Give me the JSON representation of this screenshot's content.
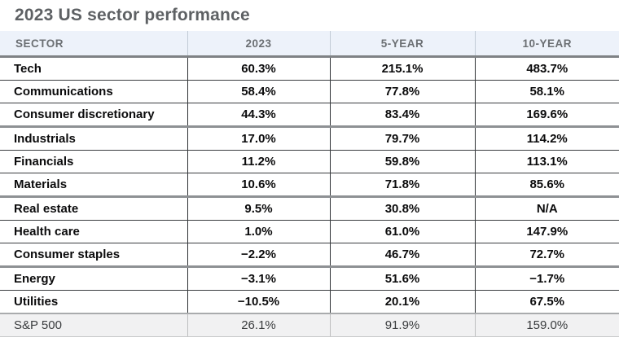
{
  "title": "2023 US sector performance",
  "colors": {
    "title_text": "#5e6164",
    "header_bg": "#edf2fa",
    "header_text": "#6b6f73",
    "header_bottom_border": "#7f8285",
    "row_border": "#3a3d40",
    "group_border": "#8e9194",
    "footer_bg": "#f1f1f2",
    "footer_border_top": "#a9abad"
  },
  "chart_data": {
    "type": "table",
    "title": "2023 US sector performance",
    "columns": [
      "SECTOR",
      "2023",
      "5-YEAR",
      "10-YEAR"
    ],
    "rows": [
      [
        "Tech",
        "60.3%",
        "215.1%",
        "483.7%"
      ],
      [
        "Communications",
        "58.4%",
        "77.8%",
        "58.1%"
      ],
      [
        "Consumer discretionary",
        "44.3%",
        "83.4%",
        "169.6%"
      ],
      [
        "Industrials",
        "17.0%",
        "79.7%",
        "114.2%"
      ],
      [
        "Financials",
        "11.2%",
        "59.8%",
        "113.1%"
      ],
      [
        "Materials",
        "10.6%",
        "71.8%",
        "85.6%"
      ],
      [
        "Real estate",
        "9.5%",
        "30.8%",
        "N/A"
      ],
      [
        "Health care",
        "1.0%",
        "61.0%",
        "147.9%"
      ],
      [
        "Consumer staples",
        "−2.2%",
        "46.7%",
        "72.7%"
      ],
      [
        "Energy",
        "−3.1%",
        "51.6%",
        "−1.7%"
      ],
      [
        "Utilities",
        "−10.5%",
        "20.1%",
        "67.5%"
      ],
      [
        "S&P 500",
        "26.1%",
        "91.9%",
        "159.0%"
      ]
    ],
    "layout": {
      "group_separators_after_rows": [
        3,
        6,
        9
      ],
      "footer_row": "S&P 500",
      "numeric_alignment": "center"
    }
  }
}
